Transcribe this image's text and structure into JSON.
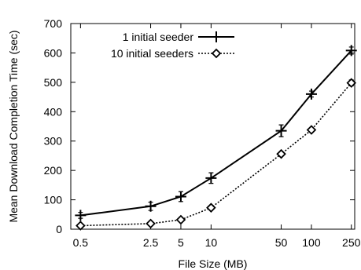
{
  "chart_data": {
    "type": "line",
    "xscale": "log",
    "xlabel": "File Size (MB)",
    "ylabel": "Mean Download Completion Time (sec)",
    "xlim": [
      0.4,
      270
    ],
    "ylim": [
      0,
      700
    ],
    "xticks": [
      0.5,
      2.5,
      5,
      10,
      50,
      100,
      250
    ],
    "xtick_labels": [
      "0.5",
      "2.5",
      "5",
      "10",
      "50",
      "100",
      "250"
    ],
    "yticks": [
      0,
      100,
      200,
      300,
      400,
      500,
      600,
      700
    ],
    "ytick_labels": [
      "0",
      "100",
      "200",
      "300",
      "400",
      "500",
      "600",
      "700"
    ],
    "grid": false,
    "legend_position": "top-left",
    "series": [
      {
        "name": "1 initial seeder",
        "marker": "plus",
        "line_style": "solid",
        "x": [
          0.5,
          2.5,
          5,
          10,
          50,
          100,
          250
        ],
        "y": [
          47,
          78,
          111,
          174,
          335,
          460,
          608
        ],
        "error": [
          10,
          14,
          17,
          18,
          20,
          10,
          12
        ]
      },
      {
        "name": "10 initial seeders",
        "marker": "diamond",
        "line_style": "dotted",
        "x": [
          0.5,
          2.5,
          5,
          10,
          50,
          100,
          250
        ],
        "y": [
          12,
          19,
          32,
          73,
          256,
          338,
          498
        ],
        "error": [
          3,
          4,
          4,
          5,
          6,
          7,
          10
        ]
      }
    ]
  }
}
